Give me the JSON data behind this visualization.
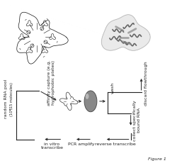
{
  "title": "Figure 1",
  "background_color": "#ffffff",
  "labels": {
    "random_rna_pool": "random RNA pool",
    "molecules": "(10¶15 molecules)",
    "affinity_capture": "affinity capture (e.g.\nhydrophobic plates)",
    "wash": "wash",
    "discard_flowthrough": "discard flowthrough",
    "collect": "collect specifically\nbound RNA",
    "reverse_transcribe": "reverse transcribe",
    "pcr_amplify": "PCR amplify",
    "in_vitro": "in vitro\ntranscribe"
  },
  "text_color": "#222222",
  "arrow_color": "#222222",
  "font_size": 4.5,
  "fig_label_size": 4.5
}
